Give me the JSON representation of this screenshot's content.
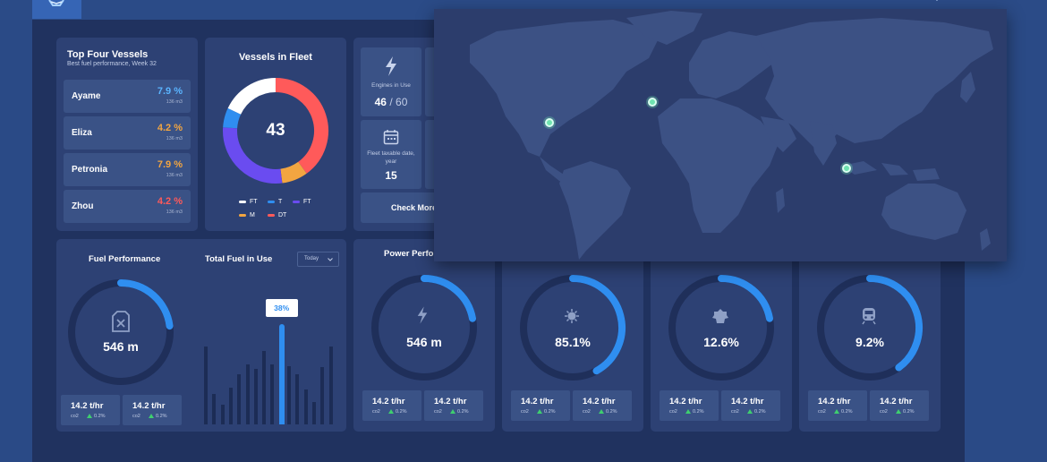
{
  "colors": {
    "accent_blue": "#2f8ef0",
    "ring_track": "#1f2f5a",
    "pct_blue": "#5ab4ff",
    "pct_orange": "#f2a541",
    "pct_red": "#ff5a5a",
    "marker": "#6fe3b0"
  },
  "top_vessels": {
    "title": "Top Four Vessels",
    "subtitle": "Best fuel performance, Week 32",
    "items": [
      {
        "name": "Ayame",
        "pct": "7.9 %",
        "sub": "136 m3",
        "color": "#5ab4ff"
      },
      {
        "name": "Eliza",
        "pct": "4.2 %",
        "sub": "136 m3",
        "color": "#f2a541"
      },
      {
        "name": "Petronia",
        "pct": "7.9 %",
        "sub": "136 m3",
        "color": "#f2a541"
      },
      {
        "name": "Zhou",
        "pct": "4.2 %",
        "sub": "136 m3",
        "color": "#ff5a5a"
      }
    ]
  },
  "fleet": {
    "title": "Vessels in Fleet",
    "total": "43",
    "segments": [
      {
        "label": "DT",
        "value": 40,
        "color": "#ff5a5a"
      },
      {
        "label": "M",
        "value": 8,
        "color": "#f2a541"
      },
      {
        "label": "FT",
        "value": 28,
        "color": "#6a4cf0"
      },
      {
        "label": "T",
        "value": 6,
        "color": "#2f8ef0"
      },
      {
        "label": "FT",
        "value": 18,
        "color": "#ffffff"
      }
    ],
    "legend_row1": [
      "FT",
      "T",
      "FT"
    ],
    "legend_row2": [
      "M",
      "DT"
    ]
  },
  "stats": {
    "engines_label": "Engines in Use",
    "engines_used": "46",
    "engines_sep": "/",
    "engines_total": "60",
    "taxable_label": "Fleet taxable date, year",
    "taxable_value": "15",
    "check_more": "Check More",
    "icon_bolt": "bolt-icon",
    "icon_calendar": "calendar-icon"
  },
  "fuel": {
    "perf_title": "Fuel Performance",
    "total_title": "Total Fuel in Use",
    "select_value": "Today",
    "ring_value": "546 m",
    "ring_fraction": 0.23,
    "bar_tooltip": "38%",
    "bars": [
      0.78,
      0.3,
      0.2,
      0.37,
      0.5,
      0.6,
      0.55,
      0.73,
      0.6,
      1.0,
      0.58,
      0.5,
      0.35,
      0.22,
      0.57,
      0.78
    ],
    "highlight_index": 9,
    "minis": [
      {
        "value": "14.2 t/hr",
        "unit": "co2",
        "delta": "0.2%"
      },
      {
        "value": "14.2 t/hr",
        "unit": "co2",
        "delta": "0.2%"
      }
    ]
  },
  "power": {
    "title": "Power Perfo",
    "cards": [
      {
        "value": "546 m",
        "icon": "bolt-icon",
        "fraction": 0.22,
        "minis": [
          {
            "value": "14.2 t/hr",
            "unit": "co2",
            "delta": "0.2%"
          },
          {
            "value": "14.2 t/hr",
            "unit": "co2",
            "delta": "0.2%"
          }
        ]
      },
      {
        "value": "85.1%",
        "icon": "engine-icon",
        "fraction": 0.42,
        "minis": [
          {
            "value": "14.2 t/hr",
            "unit": "co2",
            "delta": "0.2%"
          },
          {
            "value": "14.2 t/hr",
            "unit": "co2",
            "delta": "0.2%"
          }
        ]
      },
      {
        "value": "12.6%",
        "icon": "turbine-icon",
        "fraction": 0.22,
        "minis": [
          {
            "value": "14.2 t/hr",
            "unit": "co2",
            "delta": "0.2%"
          },
          {
            "value": "14.2 t/hr",
            "unit": "co2",
            "delta": "0.2%"
          }
        ]
      },
      {
        "value": "9.2%",
        "icon": "train-icon",
        "fraction": 0.4,
        "minis": [
          {
            "value": "14.2 t/hr",
            "unit": "co2",
            "delta": "0.2%"
          },
          {
            "value": "14.2 t/hr",
            "unit": "co2",
            "delta": "0.2%"
          }
        ]
      }
    ]
  },
  "map": {
    "icon": "world-map",
    "markers": [
      "caribbean-marker",
      "atlantic-marker",
      "indonesia-marker"
    ]
  }
}
